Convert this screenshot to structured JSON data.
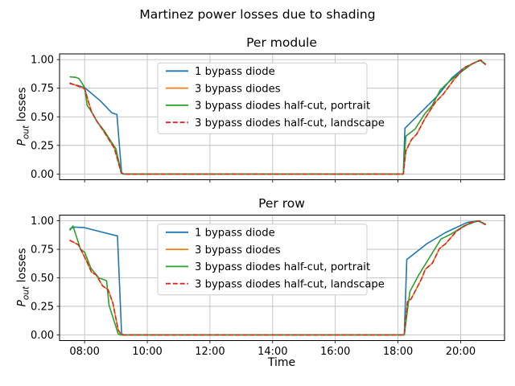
{
  "figure": {
    "suptitle": "Martinez power losses due to shading",
    "xlabel": "Time",
    "ylabel": {
      "symbol": "P",
      "subscript": "out",
      "rest": " losses"
    },
    "ylabel_plain": "P_out losses"
  },
  "style": {
    "background": "#ffffff",
    "grid_color": "#b8b8b8",
    "spine_color": "#000000",
    "legend_border": "#cccccc",
    "text_color": "#000000",
    "series_colors": {
      "blue": "#1f77b4",
      "orange": "#ff7f0e",
      "green": "#2ca02c",
      "red": "#d62728"
    }
  },
  "chart_data": [
    {
      "type": "line",
      "title": "Per module",
      "xlabel": "",
      "ylabel": "P_out losses",
      "grid": true,
      "legend_location": "upper center",
      "xlim": [
        7.2,
        21.4
      ],
      "ylim": [
        -0.05,
        1.05
      ],
      "xticks": {
        "values": [
          8,
          10,
          12,
          14,
          16,
          18,
          20
        ],
        "labels": [
          "08:00",
          "10:00",
          "12:00",
          "14:00",
          "16:00",
          "18:00",
          "20:00"
        ],
        "show_labels": false
      },
      "yticks": {
        "values": [
          0.0,
          0.25,
          0.5,
          0.75,
          1.0
        ],
        "labels": [
          "0.00",
          "0.25",
          "0.50",
          "0.75",
          "1.00"
        ]
      },
      "series": [
        {
          "name": "1 bypass diode",
          "color": "#1f77b4",
          "style": "solid",
          "points": [
            [
              7.52,
              0.79
            ],
            [
              7.77,
              0.775
            ],
            [
              8.0,
              0.755
            ],
            [
              8.5,
              0.64
            ],
            [
              8.87,
              0.535
            ],
            [
              9.03,
              0.52
            ],
            [
              9.18,
              0.01
            ],
            [
              9.25,
              0.0
            ],
            [
              18.17,
              0.0
            ],
            [
              18.22,
              0.4
            ],
            [
              19.25,
              0.68
            ],
            [
              19.72,
              0.84
            ],
            [
              20.07,
              0.92
            ],
            [
              20.45,
              0.975
            ],
            [
              20.62,
              0.995
            ],
            [
              20.8,
              0.955
            ]
          ]
        },
        {
          "name": "3 bypass diodes",
          "color": "#ff7f0e",
          "style": "solid",
          "points": [
            [
              7.52,
              0.795
            ],
            [
              7.82,
              0.765
            ],
            [
              8.0,
              0.745
            ],
            [
              8.13,
              0.625
            ],
            [
              8.22,
              0.545
            ],
            [
              8.38,
              0.465
            ],
            [
              8.63,
              0.365
            ],
            [
              8.95,
              0.225
            ],
            [
              9.17,
              0.01
            ],
            [
              9.25,
              0.0
            ],
            [
              18.17,
              0.0
            ],
            [
              18.25,
              0.2
            ],
            [
              18.43,
              0.3
            ],
            [
              18.6,
              0.35
            ],
            [
              18.85,
              0.48
            ],
            [
              19.2,
              0.63
            ],
            [
              19.45,
              0.7
            ],
            [
              19.8,
              0.83
            ],
            [
              20.15,
              0.935
            ],
            [
              20.55,
              0.985
            ],
            [
              20.65,
              0.995
            ],
            [
              20.8,
              0.955
            ]
          ]
        },
        {
          "name": "3 bypass diodes half-cut, portrait",
          "color": "#2ca02c",
          "style": "solid",
          "points": [
            [
              7.52,
              0.85
            ],
            [
              7.72,
              0.845
            ],
            [
              7.82,
              0.835
            ],
            [
              8.0,
              0.757
            ],
            [
              8.08,
              0.6
            ],
            [
              8.17,
              0.565
            ],
            [
              8.42,
              0.45
            ],
            [
              8.62,
              0.38
            ],
            [
              8.88,
              0.27
            ],
            [
              9.0,
              0.22
            ],
            [
              9.17,
              0.01
            ],
            [
              9.22,
              0.0
            ],
            [
              18.17,
              0.0
            ],
            [
              18.25,
              0.33
            ],
            [
              18.55,
              0.395
            ],
            [
              18.85,
              0.525
            ],
            [
              19.08,
              0.595
            ],
            [
              19.35,
              0.735
            ],
            [
              19.6,
              0.8
            ],
            [
              20.0,
              0.89
            ],
            [
              20.35,
              0.96
            ],
            [
              20.62,
              0.995
            ],
            [
              20.8,
              0.96
            ]
          ]
        },
        {
          "name": "3 bypass diodes half-cut, landscape",
          "color": "#d62728",
          "style": "dashed",
          "points": [
            [
              7.52,
              0.795
            ],
            [
              7.82,
              0.765
            ],
            [
              8.0,
              0.745
            ],
            [
              8.13,
              0.625
            ],
            [
              8.22,
              0.545
            ],
            [
              8.38,
              0.465
            ],
            [
              8.63,
              0.365
            ],
            [
              8.95,
              0.225
            ],
            [
              9.17,
              0.01
            ],
            [
              9.25,
              0.0
            ],
            [
              18.17,
              0.0
            ],
            [
              18.25,
              0.2
            ],
            [
              18.43,
              0.3
            ],
            [
              18.6,
              0.35
            ],
            [
              18.85,
              0.48
            ],
            [
              19.2,
              0.63
            ],
            [
              19.45,
              0.7
            ],
            [
              19.8,
              0.83
            ],
            [
              20.15,
              0.935
            ],
            [
              20.55,
              0.985
            ],
            [
              20.65,
              0.995
            ],
            [
              20.8,
              0.955
            ]
          ]
        }
      ]
    },
    {
      "type": "line",
      "title": "Per row",
      "xlabel": "Time",
      "ylabel": "P_out losses",
      "grid": true,
      "legend_location": "upper center",
      "xlim": [
        7.2,
        21.4
      ],
      "ylim": [
        -0.05,
        1.05
      ],
      "xticks": {
        "values": [
          8,
          10,
          12,
          14,
          16,
          18,
          20
        ],
        "labels": [
          "08:00",
          "10:00",
          "12:00",
          "14:00",
          "16:00",
          "18:00",
          "20:00"
        ],
        "show_labels": true
      },
      "yticks": {
        "values": [
          0.0,
          0.25,
          0.5,
          0.75,
          1.0
        ],
        "labels": [
          "0.00",
          "0.25",
          "0.50",
          "0.75",
          "1.00"
        ]
      },
      "series": [
        {
          "name": "1 bypass diode",
          "color": "#1f77b4",
          "style": "solid",
          "points": [
            [
              7.52,
              0.93
            ],
            [
              7.68,
              0.945
            ],
            [
              8.0,
              0.94
            ],
            [
              8.93,
              0.875
            ],
            [
              9.05,
              0.868
            ],
            [
              9.18,
              0.01
            ],
            [
              9.25,
              0.0
            ],
            [
              18.2,
              0.0
            ],
            [
              18.28,
              0.66
            ],
            [
              18.9,
              0.795
            ],
            [
              19.5,
              0.895
            ],
            [
              20.2,
              0.985
            ],
            [
              20.55,
              1.0
            ],
            [
              20.8,
              0.965
            ]
          ]
        },
        {
          "name": "3 bypass diodes",
          "color": "#ff7f0e",
          "style": "solid",
          "points": [
            [
              7.52,
              0.83
            ],
            [
              7.8,
              0.79
            ],
            [
              8.05,
              0.655
            ],
            [
              8.22,
              0.55
            ],
            [
              8.37,
              0.525
            ],
            [
              8.57,
              0.43
            ],
            [
              8.75,
              0.395
            ],
            [
              8.9,
              0.28
            ],
            [
              9.07,
              0.045
            ],
            [
              9.17,
              0.0
            ],
            [
              18.2,
              0.0
            ],
            [
              18.3,
              0.29
            ],
            [
              18.42,
              0.315
            ],
            [
              18.75,
              0.49
            ],
            [
              18.87,
              0.575
            ],
            [
              19.1,
              0.63
            ],
            [
              19.32,
              0.755
            ],
            [
              19.52,
              0.8
            ],
            [
              19.87,
              0.91
            ],
            [
              20.27,
              0.98
            ],
            [
              20.6,
              1.0
            ],
            [
              20.8,
              0.965
            ]
          ]
        },
        {
          "name": "3 bypass diodes half-cut, portrait",
          "color": "#2ca02c",
          "style": "solid",
          "points": [
            [
              7.52,
              0.915
            ],
            [
              7.63,
              0.955
            ],
            [
              7.87,
              0.75
            ],
            [
              8.0,
              0.725
            ],
            [
              8.2,
              0.585
            ],
            [
              8.45,
              0.5
            ],
            [
              8.7,
              0.475
            ],
            [
              8.78,
              0.26
            ],
            [
              9.07,
              0.01
            ],
            [
              9.13,
              0.0
            ],
            [
              18.2,
              0.0
            ],
            [
              18.38,
              0.38
            ],
            [
              18.65,
              0.52
            ],
            [
              19.0,
              0.675
            ],
            [
              19.37,
              0.84
            ],
            [
              19.7,
              0.885
            ],
            [
              20.1,
              0.955
            ],
            [
              20.55,
              1.0
            ],
            [
              20.8,
              0.97
            ]
          ]
        },
        {
          "name": "3 bypass diodes half-cut, landscape",
          "color": "#d62728",
          "style": "dashed",
          "points": [
            [
              7.52,
              0.83
            ],
            [
              7.8,
              0.79
            ],
            [
              8.05,
              0.655
            ],
            [
              8.22,
              0.55
            ],
            [
              8.37,
              0.525
            ],
            [
              8.57,
              0.43
            ],
            [
              8.75,
              0.395
            ],
            [
              8.9,
              0.28
            ],
            [
              9.07,
              0.045
            ],
            [
              9.17,
              0.0
            ],
            [
              18.2,
              0.0
            ],
            [
              18.3,
              0.29
            ],
            [
              18.42,
              0.315
            ],
            [
              18.75,
              0.49
            ],
            [
              18.87,
              0.575
            ],
            [
              19.1,
              0.63
            ],
            [
              19.32,
              0.755
            ],
            [
              19.52,
              0.8
            ],
            [
              19.87,
              0.91
            ],
            [
              20.27,
              0.98
            ],
            [
              20.6,
              1.0
            ],
            [
              20.8,
              0.965
            ]
          ]
        }
      ]
    }
  ]
}
